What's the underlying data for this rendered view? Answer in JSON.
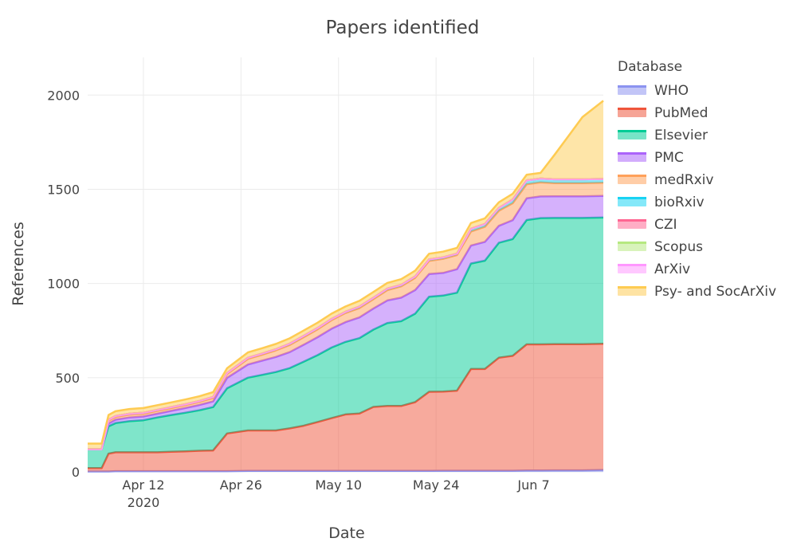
{
  "chart_data": {
    "type": "area",
    "title": "Papers identified",
    "xlabel": "Date",
    "ylabel": "References",
    "x_range": [
      "2020-04-04",
      "2020-06-17"
    ],
    "ylim": [
      0,
      2200
    ],
    "x_ticks": [
      {
        "date": "2020-04-12",
        "label": "Apr 12",
        "sublabel": "2020"
      },
      {
        "date": "2020-04-26",
        "label": "Apr 26",
        "sublabel": ""
      },
      {
        "date": "2020-05-10",
        "label": "May 10",
        "sublabel": ""
      },
      {
        "date": "2020-05-24",
        "label": "May 24",
        "sublabel": ""
      },
      {
        "date": "2020-06-07",
        "label": "Jun 7",
        "sublabel": ""
      }
    ],
    "y_ticks": [
      0,
      500,
      1000,
      1500,
      2000
    ],
    "grid": true,
    "stacked": true,
    "legend_title": "Database",
    "legend_position": "right",
    "dates": [
      "2020-04-04",
      "2020-04-05",
      "2020-04-06",
      "2020-04-07",
      "2020-04-08",
      "2020-04-10",
      "2020-04-12",
      "2020-04-14",
      "2020-04-16",
      "2020-04-18",
      "2020-04-20",
      "2020-04-22",
      "2020-04-24",
      "2020-04-27",
      "2020-04-29",
      "2020-05-01",
      "2020-05-03",
      "2020-05-05",
      "2020-05-07",
      "2020-05-09",
      "2020-05-11",
      "2020-05-13",
      "2020-05-15",
      "2020-05-17",
      "2020-05-19",
      "2020-05-21",
      "2020-05-23",
      "2020-05-25",
      "2020-05-27",
      "2020-05-29",
      "2020-05-31",
      "2020-06-02",
      "2020-06-04",
      "2020-06-06",
      "2020-06-08",
      "2020-06-10",
      "2020-06-12",
      "2020-06-14",
      "2020-06-17"
    ],
    "series": [
      {
        "name": "WHO",
        "color": "#8c93f0",
        "values": [
          2,
          2,
          2,
          2,
          4,
          4,
          4,
          4,
          4,
          4,
          4,
          4,
          4,
          5,
          5,
          5,
          5,
          5,
          5,
          5,
          5,
          5,
          5,
          5,
          5,
          5,
          5,
          6,
          6,
          6,
          6,
          6,
          6,
          7,
          7,
          8,
          8,
          8,
          10
        ]
      },
      {
        "name": "PubMed",
        "color": "#ef553b",
        "values": [
          18,
          18,
          18,
          95,
          100,
          100,
          100,
          100,
          103,
          105,
          108,
          110,
          200,
          215,
          215,
          215,
          226,
          240,
          260,
          280,
          300,
          305,
          340,
          345,
          345,
          365,
          420,
          420,
          425,
          540,
          540,
          600,
          610,
          670,
          670,
          670,
          670,
          670,
          670
        ]
      },
      {
        "name": "Elsevier",
        "color": "#00cc96",
        "values": [
          100,
          100,
          100,
          145,
          155,
          165,
          170,
          185,
          195,
          205,
          215,
          230,
          240,
          280,
          295,
          310,
          320,
          340,
          355,
          375,
          385,
          400,
          410,
          440,
          450,
          470,
          505,
          510,
          520,
          560,
          575,
          610,
          620,
          660,
          670,
          670,
          670,
          670,
          670
        ]
      },
      {
        "name": "PMC",
        "color": "#ab63fa",
        "values": [
          0,
          0,
          0,
          15,
          18,
          20,
          20,
          20,
          22,
          25,
          28,
          30,
          55,
          70,
          75,
          80,
          85,
          90,
          95,
          100,
          105,
          110,
          112,
          120,
          125,
          125,
          120,
          120,
          125,
          95,
          100,
          90,
          100,
          115,
          115,
          115,
          115,
          115,
          115
        ]
      },
      {
        "name": "medRxiv",
        "color": "#ffa15a",
        "values": [
          0,
          0,
          0,
          15,
          15,
          15,
          15,
          15,
          15,
          15,
          16,
          18,
          20,
          30,
          32,
          35,
          38,
          40,
          42,
          45,
          48,
          50,
          50,
          55,
          60,
          65,
          70,
          75,
          75,
          75,
          80,
          80,
          90,
          75,
          75,
          70,
          70,
          70,
          70
        ]
      },
      {
        "name": "bioRxiv",
        "color": "#19d3f3",
        "values": [
          0,
          0,
          0,
          5,
          5,
          5,
          5,
          5,
          5,
          5,
          5,
          6,
          6,
          6,
          6,
          6,
          7,
          7,
          7,
          7,
          7,
          8,
          8,
          8,
          8,
          8,
          8,
          8,
          8,
          15,
          15,
          15,
          20,
          20,
          20,
          20,
          20,
          20,
          20
        ]
      },
      {
        "name": "CZI",
        "color": "#ff6692",
        "values": [
          0,
          0,
          0,
          0,
          0,
          0,
          0,
          0,
          0,
          0,
          0,
          0,
          0,
          0,
          0,
          0,
          0,
          0,
          0,
          0,
          0,
          0,
          0,
          0,
          0,
          0,
          0,
          0,
          0,
          0,
          0,
          0,
          0,
          0,
          0,
          0,
          0,
          0,
          0
        ]
      },
      {
        "name": "Scopus",
        "color": "#b6e880",
        "values": [
          0,
          0,
          0,
          0,
          0,
          0,
          0,
          0,
          0,
          0,
          0,
          0,
          0,
          0,
          0,
          0,
          0,
          0,
          0,
          0,
          0,
          0,
          0,
          0,
          0,
          0,
          0,
          0,
          0,
          0,
          0,
          0,
          0,
          0,
          0,
          0,
          0,
          0,
          0
        ]
      },
      {
        "name": "ArXiv",
        "color": "#ff97ff",
        "values": [
          0,
          0,
          0,
          0,
          0,
          0,
          0,
          0,
          0,
          0,
          0,
          0,
          0,
          0,
          0,
          0,
          0,
          0,
          0,
          0,
          0,
          0,
          0,
          0,
          0,
          0,
          0,
          0,
          0,
          0,
          0,
          0,
          0,
          0,
          0,
          0,
          0,
          0,
          0
        ]
      },
      {
        "name": "Psy- and SocArXiv",
        "color": "#fecb52",
        "values": [
          30,
          30,
          30,
          25,
          25,
          25,
          25,
          25,
          25,
          25,
          25,
          25,
          25,
          28,
          28,
          28,
          28,
          28,
          28,
          28,
          28,
          30,
          30,
          30,
          30,
          30,
          30,
          30,
          30,
          30,
          30,
          30,
          30,
          30,
          30,
          130,
          230,
          330,
          415
        ]
      }
    ]
  }
}
